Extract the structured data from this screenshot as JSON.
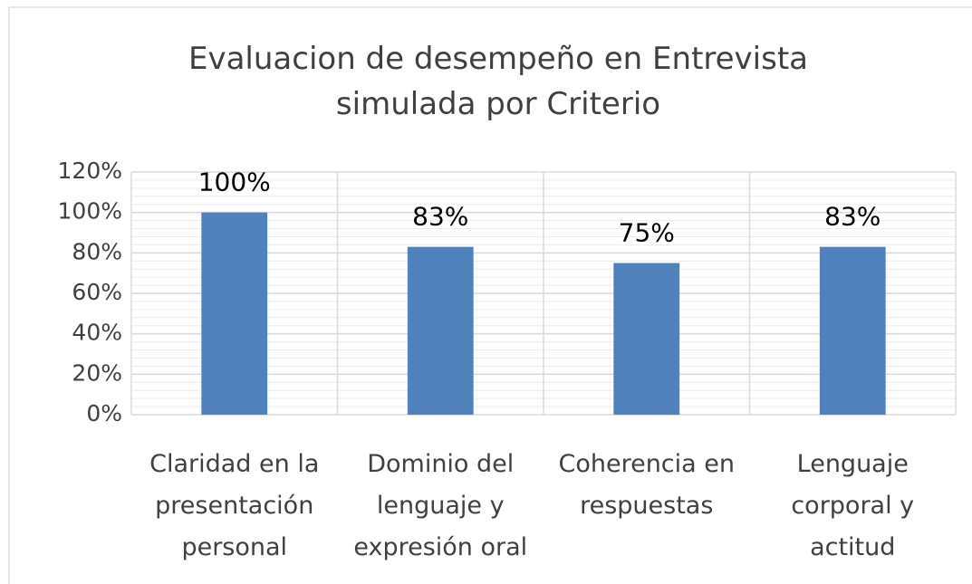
{
  "chart_data": {
    "type": "bar",
    "title": "Evaluacion de desempeño en Entrevista simulada por Criterio",
    "categories": [
      "Claridad en la presentación personal",
      "Dominio del lenguaje y expresión oral",
      "Coherencia en respuestas",
      "Lenguaje corporal y actitud"
    ],
    "values": [
      100,
      83,
      75,
      83
    ],
    "value_labels": [
      "100%",
      "83%",
      "75%",
      "83%"
    ],
    "color": "#4f81bd",
    "ylim": [
      0,
      120
    ],
    "yticks": [
      {
        "value": 0,
        "label": "0%"
      },
      {
        "value": 20,
        "label": "20%"
      },
      {
        "value": 40,
        "label": "40%"
      },
      {
        "value": 60,
        "label": "60%"
      },
      {
        "value": 80,
        "label": "80%"
      },
      {
        "value": 100,
        "label": "100%"
      },
      {
        "value": 120,
        "label": "120%"
      }
    ],
    "grid": true
  }
}
